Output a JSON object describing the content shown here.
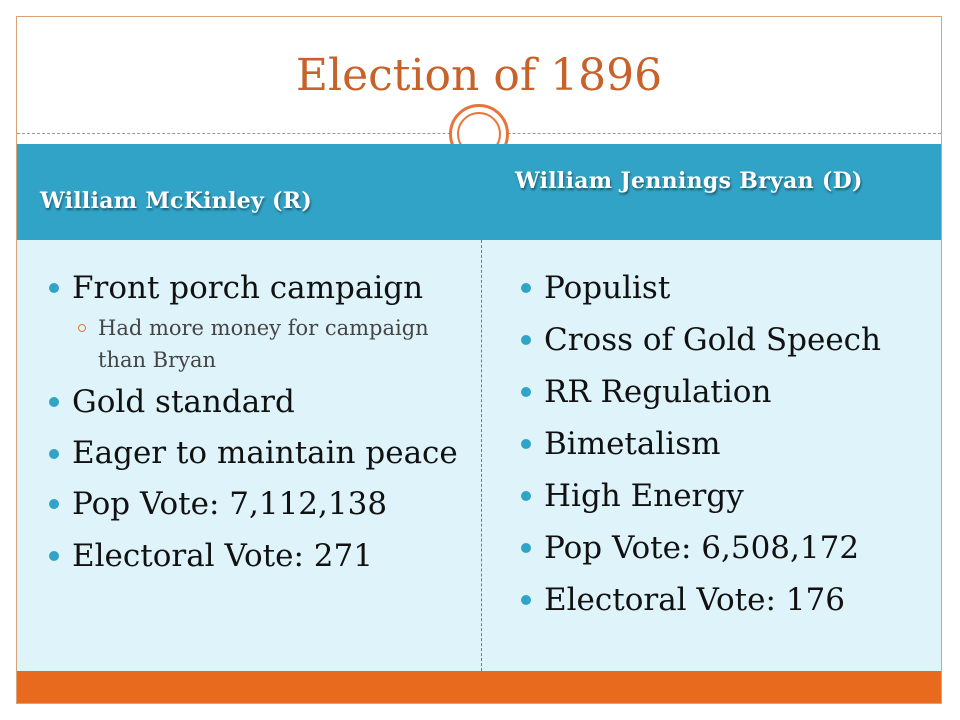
{
  "slide": {
    "title": "Election of 1896",
    "left": {
      "heading": "William McKinley (R)",
      "items": [
        {
          "text": "Front porch campaign",
          "sub": "Had more money for campaign than Bryan"
        },
        {
          "text": "Gold standard"
        },
        {
          "text": "Eager to maintain peace"
        },
        {
          "text": "Pop Vote: 7,112,138"
        },
        {
          "text": "Electoral Vote: 271"
        }
      ]
    },
    "right": {
      "heading": "William Jennings Bryan (D)",
      "items": [
        {
          "text": "Populist"
        },
        {
          "text": "Cross of Gold Speech"
        },
        {
          "text": "RR Regulation"
        },
        {
          "text": "Bimetalism"
        },
        {
          "text": "High Energy"
        },
        {
          "text": "Pop Vote: 6,508,172"
        },
        {
          "text": "Electoral Vote: 176"
        }
      ]
    }
  },
  "colors": {
    "title": "#c8622b",
    "header_band": "#31a3c7",
    "body_band": "#dff4fa",
    "footer_band": "#e86a1f",
    "accent_circle": "#e8743b"
  }
}
